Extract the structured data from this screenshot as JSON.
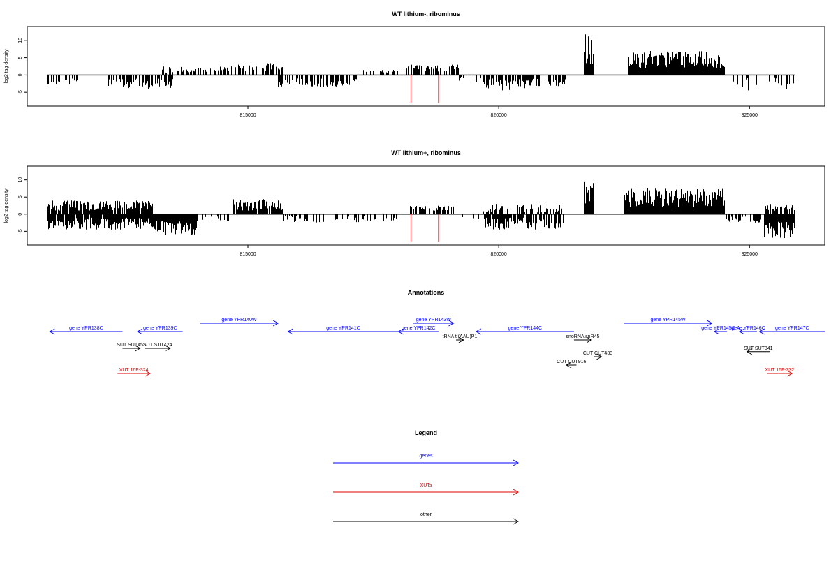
{
  "chart_data": [
    {
      "type": "bar",
      "title": "WT lithium-, ribominus",
      "ylabel": "log2 tag density",
      "xlim": [
        810600,
        826500
      ],
      "ylim": [
        -9,
        14
      ],
      "xticks": [
        815000,
        820000,
        825000
      ],
      "yticks": [
        -5,
        0,
        5,
        10
      ],
      "grid": false,
      "baseline_range": [
        811000,
        825900
      ],
      "profile_regions": [
        {
          "start": 811000,
          "end": 811600,
          "sign": -1,
          "min": 1,
          "max": 3,
          "density": 0.45
        },
        {
          "start": 812200,
          "end": 813500,
          "sign": -1,
          "min": 1,
          "max": 4,
          "density": 0.6
        },
        {
          "start": 813300,
          "end": 814800,
          "sign": 1,
          "min": 0.5,
          "max": 2.5,
          "density": 0.5
        },
        {
          "start": 814800,
          "end": 815700,
          "sign": 1,
          "min": 1,
          "max": 3.5,
          "density": 0.55
        },
        {
          "start": 815600,
          "end": 817200,
          "sign": -1,
          "min": 1,
          "max": 3.5,
          "density": 0.55
        },
        {
          "start": 817000,
          "end": 818000,
          "sign": 1,
          "min": 0.5,
          "max": 1.5,
          "density": 0.2
        },
        {
          "start": 818150,
          "end": 819200,
          "sign": 1,
          "min": 1,
          "max": 3,
          "density": 0.7
        },
        {
          "start": 819200,
          "end": 819700,
          "sign": -1,
          "min": 0.5,
          "max": 2,
          "density": 0.25
        },
        {
          "start": 819700,
          "end": 820600,
          "sign": -1,
          "min": 1,
          "max": 4.5,
          "density": 0.7
        },
        {
          "start": 820600,
          "end": 821400,
          "sign": -1,
          "min": 1,
          "max": 3.5,
          "density": 0.5
        },
        {
          "start": 821700,
          "end": 821900,
          "sign": 1,
          "min": 3,
          "max": 12,
          "density": 1.0
        },
        {
          "start": 822600,
          "end": 824500,
          "sign": 1,
          "min": 2,
          "max": 7,
          "density": 1.0
        },
        {
          "start": 824500,
          "end": 825900,
          "sign": -1,
          "min": 0.5,
          "max": 4.5,
          "density": 0.3
        }
      ],
      "highlight_bars": [
        {
          "x": 818250,
          "y": -8,
          "color": "#dd0000"
        },
        {
          "x": 818800,
          "y": -8,
          "color": "#dd0000"
        }
      ]
    },
    {
      "type": "bar",
      "title": "WT lithium+, ribominus",
      "ylabel": "log2 tag density",
      "xlim": [
        810600,
        826500
      ],
      "ylim": [
        -9,
        14
      ],
      "xticks": [
        815000,
        820000,
        825000
      ],
      "yticks": [
        -5,
        0,
        5,
        10
      ],
      "grid": false,
      "baseline_range": [
        811000,
        825900
      ],
      "profile_regions": [
        {
          "start": 811000,
          "end": 813100,
          "sign": 1,
          "min": 1,
          "max": 4,
          "density": 0.9
        },
        {
          "start": 811000,
          "end": 813100,
          "sign": -1,
          "min": 1,
          "max": 4.5,
          "density": 0.9
        },
        {
          "start": 813100,
          "end": 814000,
          "sign": -1,
          "min": 2,
          "max": 6,
          "density": 1.0
        },
        {
          "start": 814000,
          "end": 814700,
          "sign": -1,
          "min": 0.5,
          "max": 2,
          "density": 0.3
        },
        {
          "start": 814700,
          "end": 815700,
          "sign": 1,
          "min": 1,
          "max": 4.5,
          "density": 0.9
        },
        {
          "start": 815700,
          "end": 818000,
          "sign": -1,
          "min": 0.5,
          "max": 2.5,
          "density": 0.35
        },
        {
          "start": 818150,
          "end": 819100,
          "sign": 1,
          "min": 1,
          "max": 2.5,
          "density": 0.7
        },
        {
          "start": 819100,
          "end": 819600,
          "sign": -1,
          "min": 0.5,
          "max": 2,
          "density": 0.3
        },
        {
          "start": 819700,
          "end": 821300,
          "sign": -1,
          "min": 1,
          "max": 4.5,
          "density": 0.7
        },
        {
          "start": 819700,
          "end": 821300,
          "sign": 1,
          "min": 0.5,
          "max": 3,
          "density": 0.5
        },
        {
          "start": 821700,
          "end": 821900,
          "sign": 1,
          "min": 3,
          "max": 13,
          "density": 1.0
        },
        {
          "start": 822500,
          "end": 824500,
          "sign": 1,
          "min": 2,
          "max": 7.5,
          "density": 1.0
        },
        {
          "start": 824500,
          "end": 825300,
          "sign": -1,
          "min": 0.5,
          "max": 2.5,
          "density": 0.4
        },
        {
          "start": 825300,
          "end": 825900,
          "sign": -1,
          "min": 2,
          "max": 7,
          "density": 1.0
        },
        {
          "start": 825300,
          "end": 825900,
          "sign": 1,
          "min": 1,
          "max": 3,
          "density": 0.6
        }
      ],
      "highlight_bars": [
        {
          "x": 818250,
          "y": -8,
          "color": "#dd0000"
        },
        {
          "x": 818800,
          "y": -8,
          "color": "#dd0000"
        }
      ]
    }
  ],
  "annotations": {
    "title": "Annotations",
    "items": [
      {
        "label": "gene YPR138C",
        "start": 811050,
        "end": 812500,
        "row": 1,
        "dir": "left",
        "color": "#0000ff"
      },
      {
        "label": "gene YPR139C",
        "start": 812800,
        "end": 813700,
        "row": 1,
        "dir": "left",
        "color": "#0000ff"
      },
      {
        "label": "gene YPR140W",
        "start": 814050,
        "end": 815600,
        "row": 0,
        "dir": "right",
        "color": "#0000ff"
      },
      {
        "label": "gene YPR141C",
        "start": 815800,
        "end": 818000,
        "row": 1,
        "dir": "left",
        "color": "#0000ff"
      },
      {
        "label": "gene YPR142C",
        "start": 818000,
        "end": 818800,
        "row": 1,
        "dir": "left",
        "color": "#0000ff"
      },
      {
        "label": "gene YPR143W",
        "start": 818300,
        "end": 819100,
        "row": 0,
        "dir": "right",
        "color": "#0000ff"
      },
      {
        "label": "tRNA tI(AAU)P1",
        "start": 819150,
        "end": 819300,
        "row": 2,
        "dir": "right",
        "color": "#000000"
      },
      {
        "label": "gene YPR144C",
        "start": 819550,
        "end": 821500,
        "row": 1,
        "dir": "left",
        "color": "#0000ff"
      },
      {
        "label": "snoRNA snR45",
        "start": 821500,
        "end": 821850,
        "row": 2,
        "dir": "right",
        "color": "#000000"
      },
      {
        "label": "gene YPR145W",
        "start": 822500,
        "end": 824250,
        "row": 0,
        "dir": "right",
        "color": "#0000ff"
      },
      {
        "label": "gene YPR145C-A",
        "start": 824300,
        "end": 824550,
        "row": 1,
        "dir": "left",
        "color": "#0000ff"
      },
      {
        "label": "gene YPR146C",
        "start": 824800,
        "end": 825150,
        "row": 1,
        "dir": "left",
        "color": "#0000ff"
      },
      {
        "label": "gene YPR147C",
        "start": 825200,
        "end": 826500,
        "row": 1,
        "dir": "left",
        "color": "#0000ff"
      },
      {
        "label": "SUT SUT453",
        "start": 812500,
        "end": 812850,
        "row": 3,
        "dir": "right",
        "color": "#000000"
      },
      {
        "label": "SUT SUT424",
        "start": 812950,
        "end": 813450,
        "row": 3,
        "dir": "right",
        "color": "#000000"
      },
      {
        "label": "CUT CUT433",
        "start": 821900,
        "end": 822050,
        "row": 4,
        "dir": "right",
        "color": "#000000"
      },
      {
        "label": "CUT CUT916",
        "start": 821350,
        "end": 821550,
        "row": 5,
        "dir": "left",
        "color": "#000000"
      },
      {
        "label": "SUT SUT841",
        "start": 824950,
        "end": 825400,
        "row": 3.4,
        "dir": "left",
        "color": "#000000"
      },
      {
        "label": "XUT 16F-324",
        "start": 812400,
        "end": 813050,
        "row": 6,
        "dir": "right",
        "color": "#dd0000"
      },
      {
        "label": "XUT 16F-332",
        "start": 825350,
        "end": 825850,
        "row": 6,
        "dir": "right",
        "color": "#dd0000"
      }
    ]
  },
  "legend": {
    "title": "Legend",
    "items": [
      {
        "label": "genes",
        "color": "#0000ff"
      },
      {
        "label": "XUTs",
        "color": "#dd0000"
      },
      {
        "label": "other",
        "color": "#000000"
      }
    ]
  }
}
